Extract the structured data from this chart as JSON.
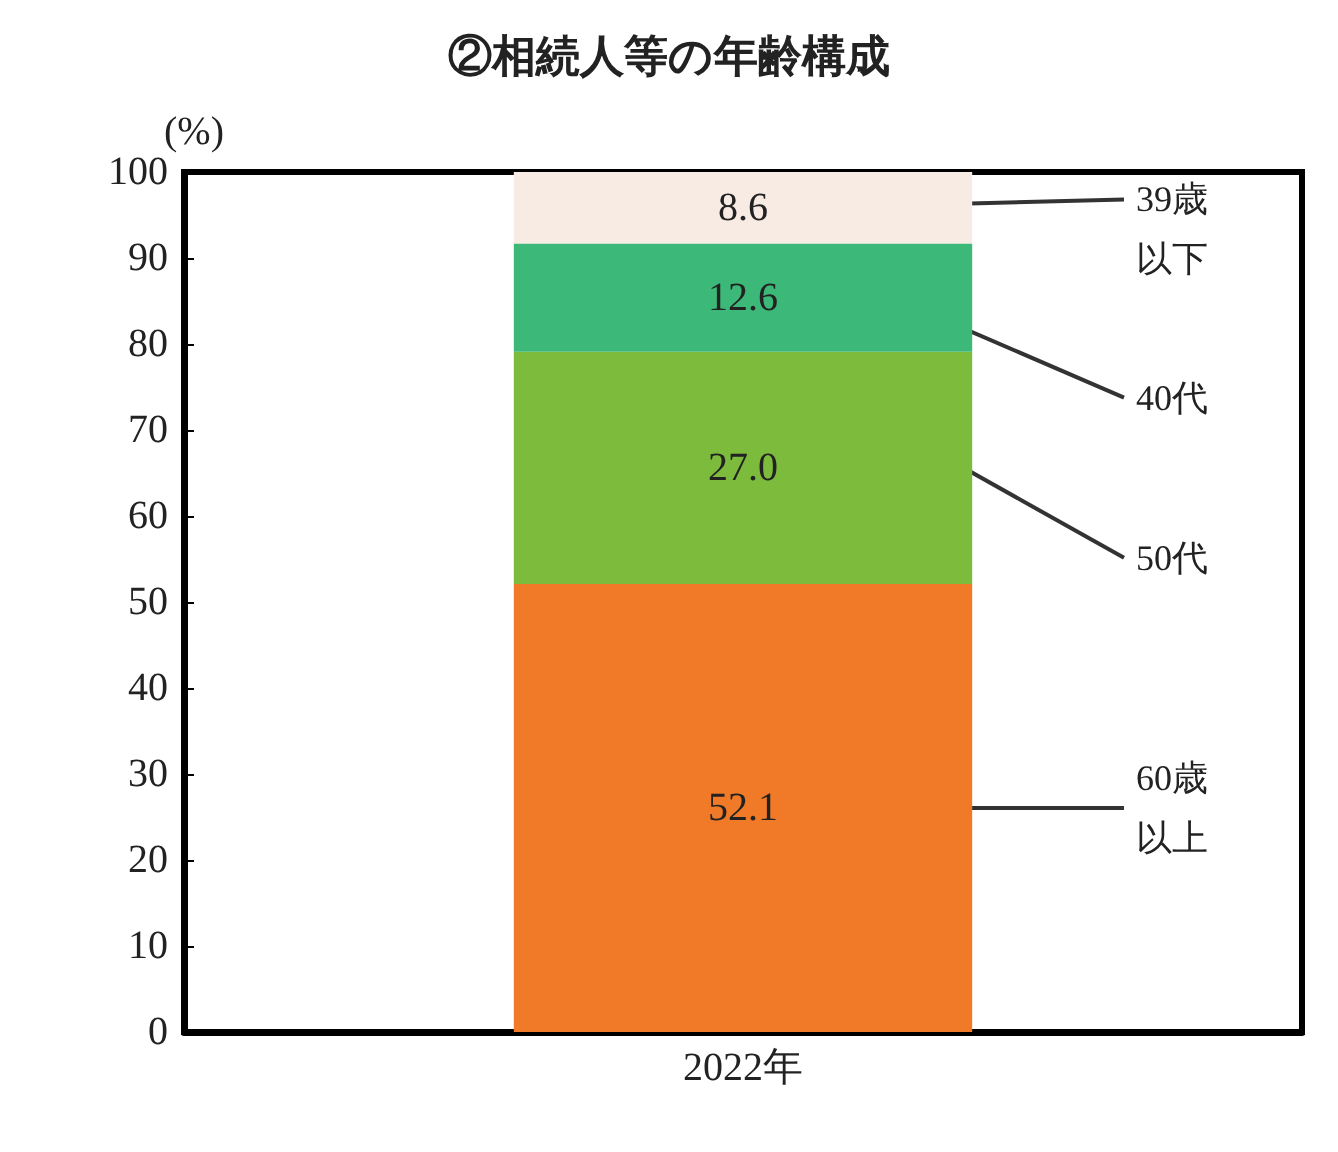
{
  "chart_data": {
    "type": "bar",
    "title": "②相続人等の年齢構成",
    "ylabel": "(%)",
    "categories": [
      "2022年"
    ],
    "stacked": true,
    "ylim": [
      0,
      100
    ],
    "yticks": [
      0,
      10,
      20,
      30,
      40,
      50,
      60,
      70,
      80,
      90,
      100
    ],
    "grid": false,
    "legend": false,
    "series": [
      {
        "name": "60歳以上",
        "color": "#f07a28",
        "values": [
          52.1
        ],
        "value_labels": [
          "52.1"
        ]
      },
      {
        "name": "50代",
        "color": "#7dbb3c",
        "values": [
          27.0
        ],
        "value_labels": [
          "27.0"
        ]
      },
      {
        "name": "40代",
        "color": "#3cb878",
        "values": [
          12.6
        ],
        "value_labels": [
          "12.6"
        ]
      },
      {
        "name": "39歳以下",
        "color": "#f7ebe4",
        "values": [
          8.6
        ],
        "value_labels": [
          "8.6"
        ]
      }
    ]
  }
}
